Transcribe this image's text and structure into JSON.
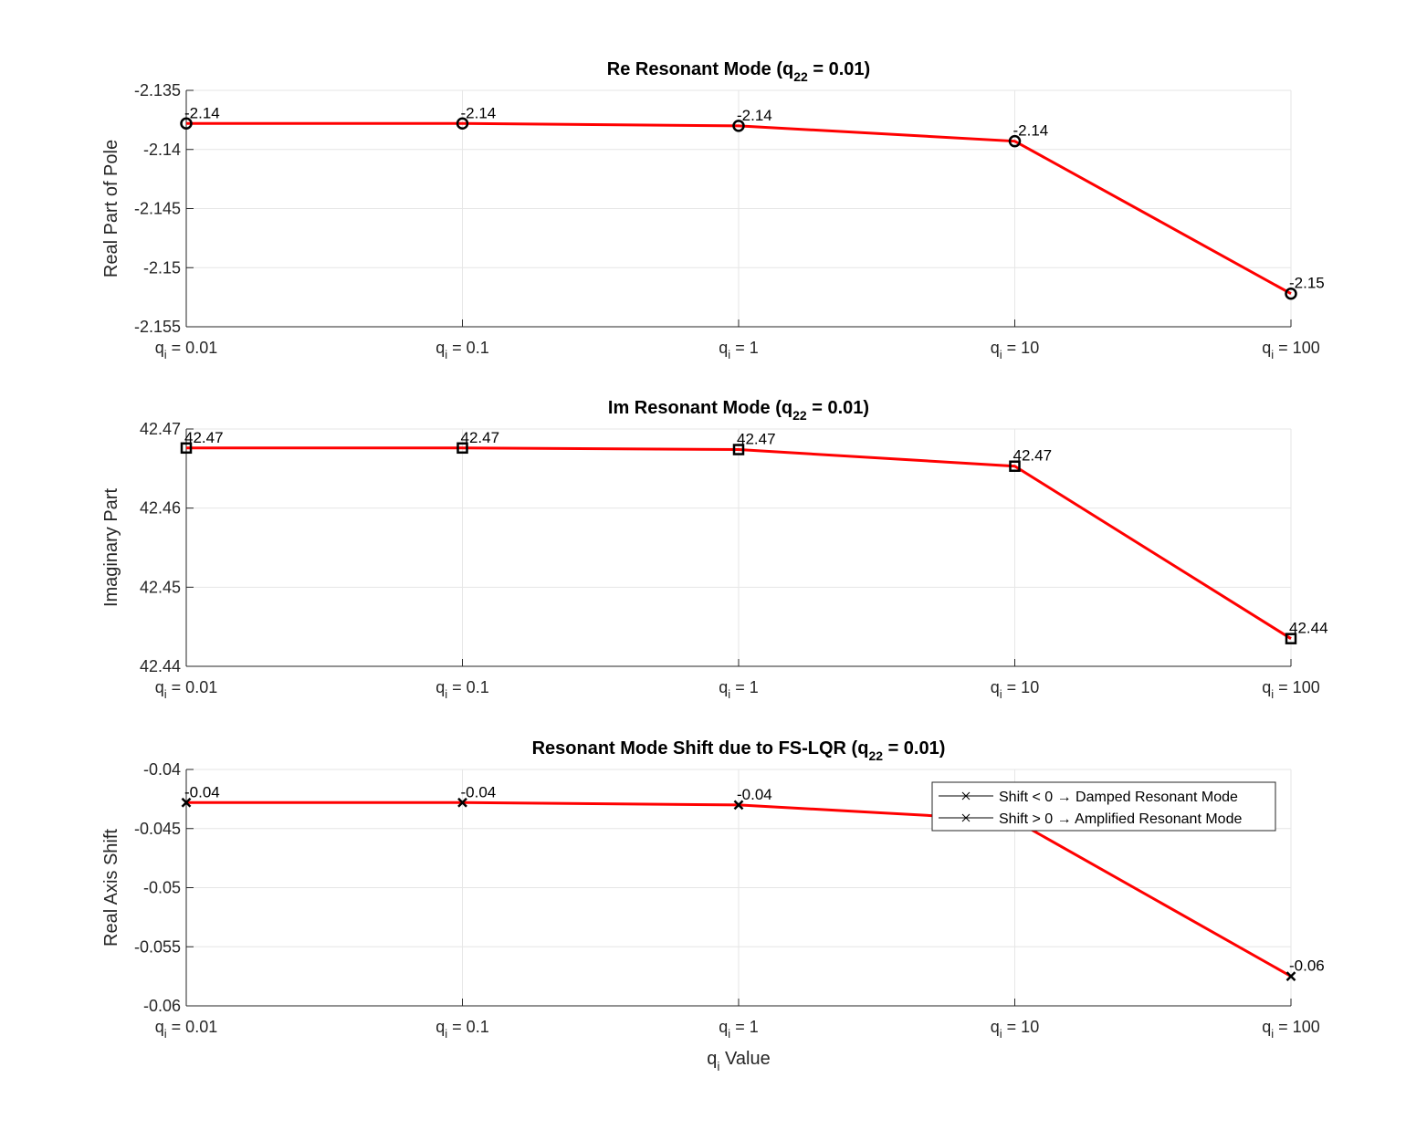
{
  "chart_data": [
    {
      "type": "line",
      "title": "Re Resonant Mode (q",
      "title_sub": "22",
      "title_tail": " = 0.01)",
      "ylabel": "Real Part of Pole",
      "ylim": [
        -2.155,
        -2.135
      ],
      "yticks": [
        "-2.155",
        "-2.15",
        "-2.145",
        "-2.14",
        "-2.135"
      ],
      "ytick_values": [
        -2.155,
        -2.15,
        -2.145,
        -2.14,
        -2.135
      ],
      "marker": "circle",
      "line_color": "#ff0000",
      "values": [
        -2.1378,
        -2.1378,
        -2.138,
        -2.1393,
        -2.1522
      ],
      "data_labels": [
        "-2.14",
        "-2.14",
        "-2.14",
        "-2.14",
        "-2.15"
      ]
    },
    {
      "type": "line",
      "title": "Im Resonant Mode (q",
      "title_sub": "22",
      "title_tail": " = 0.01)",
      "ylabel": "Imaginary Part",
      "ylim": [
        42.44,
        42.47
      ],
      "yticks": [
        "42.44",
        "42.45",
        "42.46",
        "42.47"
      ],
      "ytick_values": [
        42.44,
        42.45,
        42.46,
        42.47
      ],
      "marker": "square",
      "line_color": "#ff0000",
      "values": [
        42.4676,
        42.4676,
        42.4674,
        42.4653,
        42.4435
      ],
      "data_labels": [
        "42.47",
        "42.47",
        "42.47",
        "42.47",
        "42.44"
      ]
    },
    {
      "type": "line",
      "title": "Resonant Mode Shift due to FS-LQR (q",
      "title_sub": "22",
      "title_tail": " = 0.01)",
      "ylabel": "Real Axis Shift",
      "xlabel": "q",
      "xlabel_sub": "i",
      "xlabel_tail": " Value",
      "ylim": [
        -0.06,
        -0.04
      ],
      "yticks": [
        "-0.06",
        "-0.055",
        "-0.05",
        "-0.045",
        "-0.04"
      ],
      "ytick_values": [
        -0.06,
        -0.055,
        -0.05,
        -0.045,
        -0.04
      ],
      "marker": "x",
      "line_color": "#ff0000",
      "values": [
        -0.0428,
        -0.0428,
        -0.043,
        -0.0443,
        -0.0575
      ],
      "data_labels": [
        "-0.04",
        "-0.04",
        "-0.04",
        "-0.04",
        "-0.06"
      ],
      "legend": {
        "position": "top-right",
        "entries": [
          "Shift < 0 → Damped Resonant Mode",
          "Shift > 0 → Amplified Resonant Mode"
        ]
      }
    }
  ],
  "categories": [
    {
      "base": "q",
      "sub": "i",
      "tail": " = 0.01"
    },
    {
      "base": "q",
      "sub": "i",
      "tail": " = 0.1"
    },
    {
      "base": "q",
      "sub": "i",
      "tail": " = 1"
    },
    {
      "base": "q",
      "sub": "i",
      "tail": " = 10"
    },
    {
      "base": "q",
      "sub": "i",
      "tail": " = 100"
    }
  ],
  "grid": true
}
